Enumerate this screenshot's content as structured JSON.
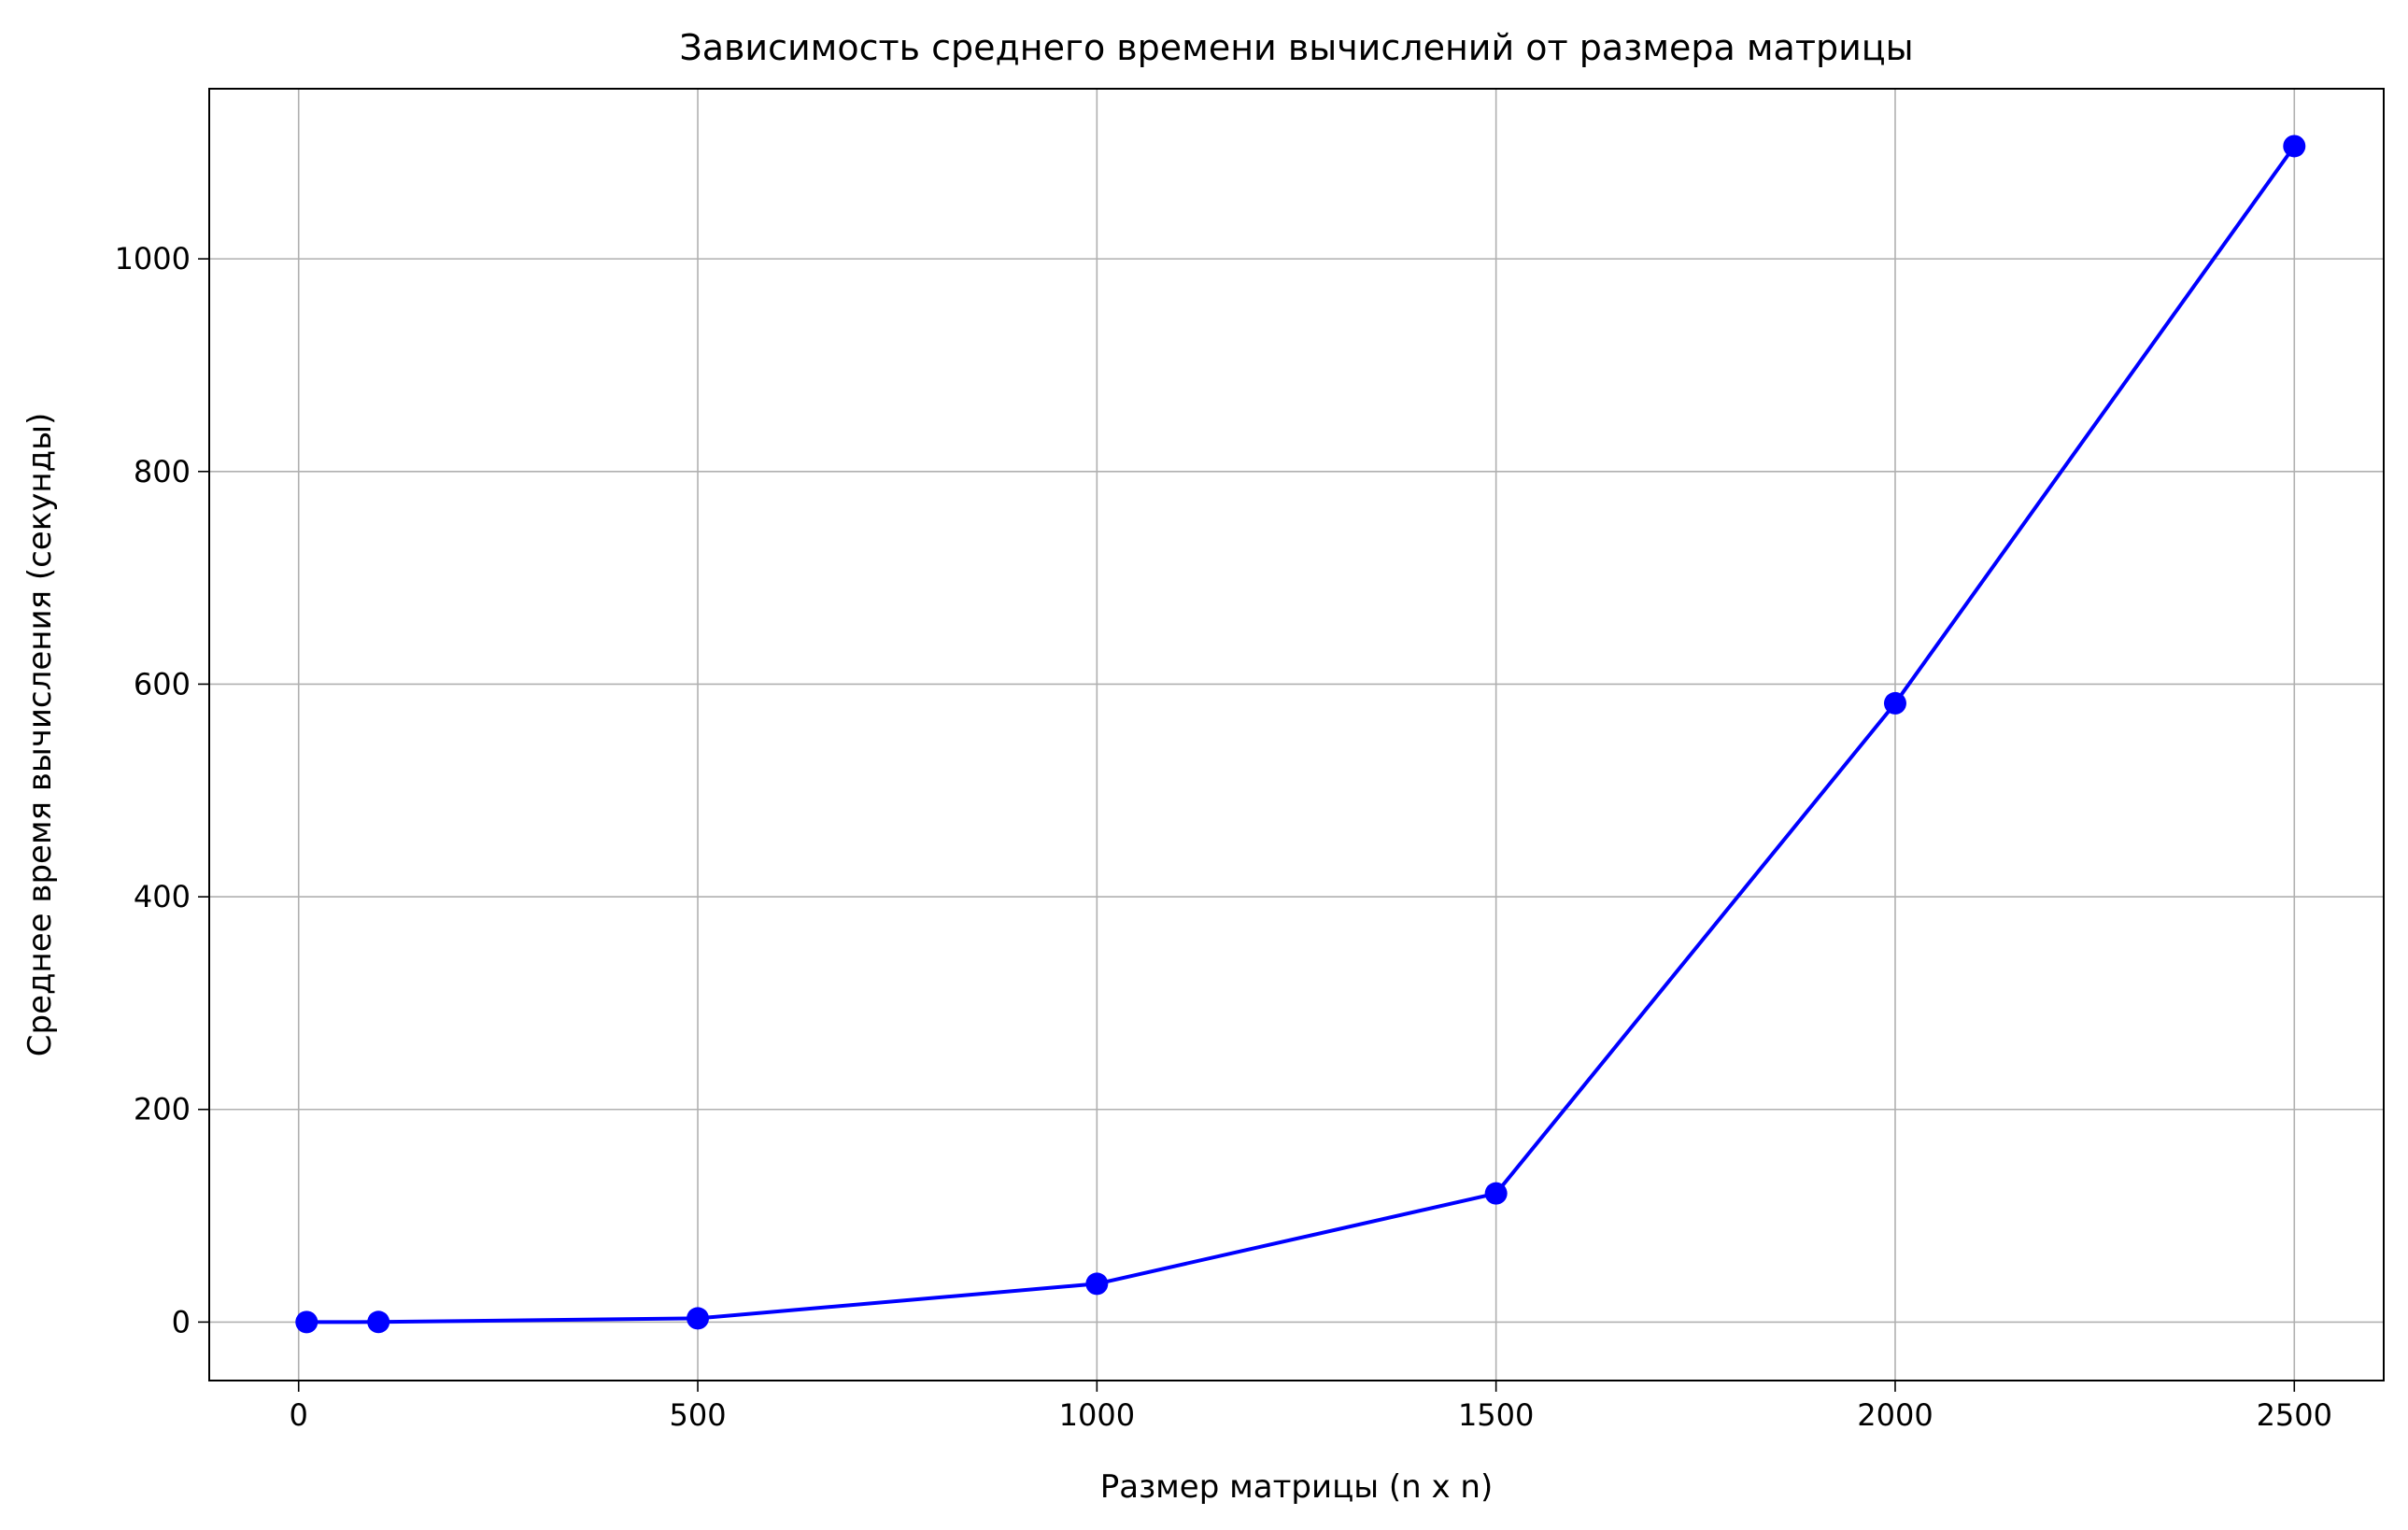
{
  "chart_data": {
    "type": "line",
    "title": "Зависимость среднего времени вычислений от размера матрицы",
    "xlabel": "Размер матрицы (n x n)",
    "ylabel": "Среднее время вычисления (секунды)",
    "xlim": [
      -112,
      2612
    ],
    "ylim": [
      -55,
      1160
    ],
    "xticks": [
      0,
      500,
      1000,
      1500,
      2000,
      2500
    ],
    "yticks": [
      0,
      200,
      400,
      600,
      800,
      1000
    ],
    "grid": true,
    "series": [
      {
        "color": "#0000ff",
        "marker": "circle",
        "x": [
          10,
          100,
          500,
          1000,
          1500,
          2000,
          2500
        ],
        "y": [
          0,
          0.1,
          3.5,
          36,
          121,
          582,
          1106
        ]
      }
    ]
  }
}
